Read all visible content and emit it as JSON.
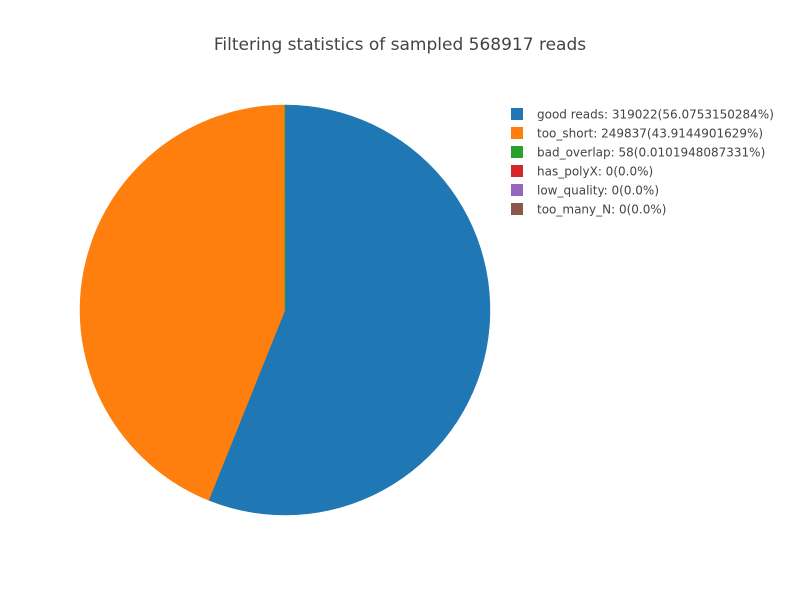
{
  "chart_data": {
    "type": "pie",
    "title": "Filtering statistics of sampled 568917 reads",
    "legend_position": "top-right",
    "slices": [
      {
        "name": "good reads",
        "label": "good reads: 319022(56.0753150284%)",
        "value": 319022,
        "color": "#1f77b4"
      },
      {
        "name": "too_short",
        "label": "too_short: 249837(43.9144901629%)",
        "value": 249837,
        "color": "#ff7f0e"
      },
      {
        "name": "bad_overlap",
        "label": "bad_overlap: 58(0.0101948087331%)",
        "value": 58,
        "color": "#2ca02c"
      },
      {
        "name": "has_polyX",
        "label": "has_polyX: 0(0.0%)",
        "value": 0,
        "color": "#d62728"
      },
      {
        "name": "low_quality",
        "label": "low_quality: 0(0.0%)",
        "value": 0,
        "color": "#9467bd"
      },
      {
        "name": "too_many_N",
        "label": "too_many_N: 0(0.0%)",
        "value": 0,
        "color": "#8c564b"
      }
    ]
  }
}
